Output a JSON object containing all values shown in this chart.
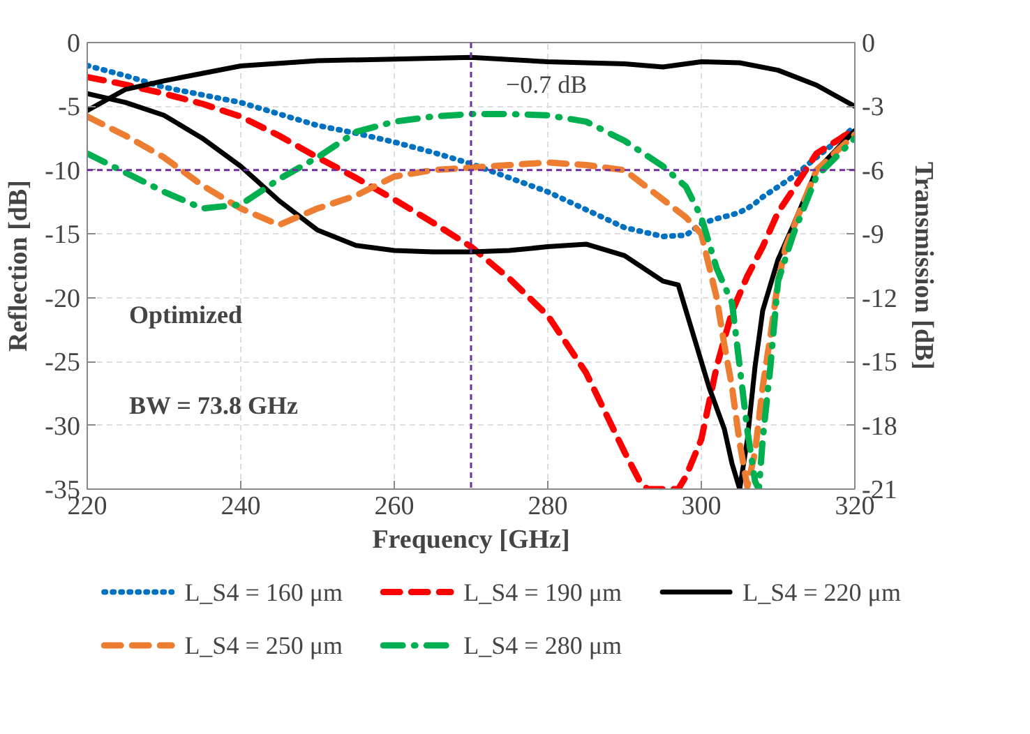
{
  "chart_data": {
    "type": "line",
    "xlabel": "Frequency [GHz]",
    "ylabel": "Reflection [dB]",
    "y2label": "Transmission [dB]",
    "x": [
      220,
      225,
      230,
      235,
      240,
      245,
      250,
      255,
      260,
      265,
      270,
      275,
      280,
      285,
      290,
      295,
      298,
      300,
      302,
      304,
      305,
      306,
      307,
      308,
      309,
      310,
      312,
      315,
      320
    ],
    "series": [
      {
        "name": "L_S4 = 160 μm",
        "color": "#0070c0",
        "line_style": "dotted",
        "values": [
          -1.8,
          -2.6,
          -3.5,
          -4.1,
          -4.7,
          -5.6,
          -6.5,
          -7.1,
          -7.8,
          -8.6,
          -9.5,
          -10.6,
          -11.7,
          -13.1,
          -14.5,
          -15.2,
          -15.1,
          -14.2,
          -13.8,
          -13.5,
          -13.3,
          -13.0,
          -12.6,
          -12.1,
          -11.7,
          -11.3,
          -10.5,
          -9.0,
          -6.6
        ]
      },
      {
        "name": "L_S4 = 190 μm",
        "color": "#ff0000",
        "line_style": "dashed",
        "x": [
          220,
          225,
          230,
          235,
          240,
          245,
          250,
          255,
          260,
          265,
          270,
          275,
          280,
          285,
          290,
          292,
          293,
          297,
          298,
          300,
          302,
          304,
          306,
          308,
          310,
          312,
          315,
          320
        ],
        "values": [
          -2.7,
          -3.3,
          -4.0,
          -4.8,
          -5.8,
          -7.3,
          -9.0,
          -10.6,
          -12.3,
          -14.1,
          -16.0,
          -18.5,
          -21.4,
          -25.9,
          -32.1,
          -34.4,
          -35,
          -35,
          -34.0,
          -31.1,
          -25.4,
          -21.1,
          -18.3,
          -16.0,
          -13.3,
          -11.5,
          -8.7,
          -6.8
        ]
      },
      {
        "name": "L_S4 = 220 μm",
        "color": "#000000",
        "line_style": "solid",
        "x": [
          220,
          225,
          230,
          235,
          240,
          245,
          250,
          255,
          260,
          265,
          270,
          275,
          280,
          285,
          290,
          295,
          297,
          299,
          301,
          303,
          304,
          305,
          306,
          307,
          308,
          310,
          312,
          315,
          320
        ],
        "values": [
          -4.0,
          -4.7,
          -5.7,
          -7.5,
          -9.7,
          -12.4,
          -14.7,
          -15.9,
          -16.3,
          -16.4,
          -16.4,
          -16.3,
          -16.0,
          -15.8,
          -16.7,
          -18.7,
          -19.0,
          -23.0,
          -27.0,
          -30.3,
          -33.0,
          -35,
          -31.1,
          -25.4,
          -21.0,
          -17.0,
          -14.3,
          -10.0,
          -6.9
        ]
      },
      {
        "name": "L_S4 = 250 μm",
        "color": "#ed7d31",
        "line_style": "dashed",
        "x": [
          220,
          225,
          230,
          235,
          240,
          245,
          250,
          255,
          260,
          265,
          270,
          275,
          280,
          285,
          290,
          295,
          298,
          300,
          302,
          303,
          304,
          305,
          306,
          307,
          308,
          309,
          310,
          311,
          313,
          315,
          320
        ],
        "values": [
          -5.8,
          -7.3,
          -9.0,
          -11.2,
          -13.0,
          -14.3,
          -13.0,
          -12.0,
          -10.5,
          -10.0,
          -9.8,
          -9.6,
          -9.4,
          -9.6,
          -10.0,
          -12.3,
          -13.7,
          -15.0,
          -20.0,
          -23.7,
          -27.0,
          -31.4,
          -34.8,
          -32.1,
          -27.0,
          -23.0,
          -18.7,
          -16.0,
          -13.0,
          -10.0,
          -7.2
        ]
      },
      {
        "name": "L_S4 = 280 μm",
        "color": "#00b050",
        "line_style": "dashdot",
        "x": [
          220,
          225,
          230,
          235,
          240,
          245,
          250,
          255,
          260,
          265,
          270,
          275,
          280,
          285,
          290,
          295,
          298,
          300,
          302,
          304,
          305,
          306,
          307,
          307.5,
          308,
          309,
          310,
          312,
          315,
          320
        ],
        "values": [
          -8.7,
          -10.2,
          -11.7,
          -13.0,
          -12.7,
          -10.7,
          -9.0,
          -7.0,
          -6.2,
          -5.8,
          -5.6,
          -5.6,
          -5.7,
          -6.2,
          -7.7,
          -9.7,
          -11.3,
          -13.7,
          -17.7,
          -20.4,
          -25.4,
          -30.4,
          -34.4,
          -35,
          -31.1,
          -25.4,
          -18.7,
          -15.0,
          -10.5,
          -7.5
        ]
      },
      {
        "color": "#000000",
        "line_style": "solid",
        "axis": "y2",
        "x": [
          220,
          225,
          230,
          240,
          250,
          260,
          270,
          280,
          290,
          295,
          297,
          300,
          305,
          310,
          315,
          320
        ],
        "values": [
          -3.2,
          -2.2,
          -1.8,
          -1.1,
          -0.85,
          -0.78,
          -0.7,
          -0.9,
          -1.0,
          -1.15,
          -1.05,
          -0.9,
          -0.95,
          -1.3,
          -2.0,
          -3.0
        ]
      }
    ],
    "xlim": [
      220,
      320
    ],
    "xticks": [
      220,
      240,
      260,
      280,
      300,
      320
    ],
    "ylim": [
      -35,
      0
    ],
    "yticks": [
      -35,
      -30,
      -25,
      -20,
      -15,
      -10,
      -5,
      0
    ],
    "y2lim": [
      -21,
      0
    ],
    "y2ticks": [
      -21,
      -18,
      -15,
      -12,
      -9,
      -6,
      -3,
      0
    ],
    "ref_lines": [
      {
        "axis": "x",
        "value": 270,
        "color": "#7030a0",
        "line_style": "dashed"
      },
      {
        "axis": "y",
        "value": -10,
        "color": "#7030a0",
        "line_style": "dashed"
      }
    ],
    "annotations": [
      "−0.7 dB",
      "Optimized",
      "BW = 73.8 GHz"
    ],
    "grid": true,
    "legend": "bottom"
  }
}
